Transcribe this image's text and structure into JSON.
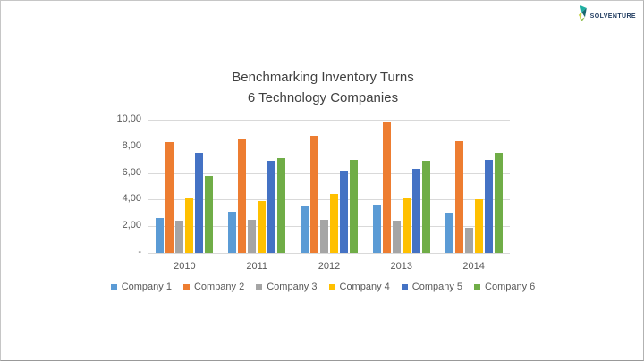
{
  "logo": {
    "text": "SOLVENTURE",
    "icon": "solventure-leaf-icon",
    "text_color": "#1e3a5f",
    "icon_colors": [
      "#1fb0a2",
      "#17666e",
      "#c9d44e",
      "#8fbf4d"
    ]
  },
  "chart_data": {
    "type": "bar",
    "title_line1": "Benchmarking Inventory Turns",
    "title_line2": "6 Technology Companies",
    "categories": [
      "2010",
      "2011",
      "2012",
      "2013",
      "2014"
    ],
    "series": [
      {
        "name": "Company 1",
        "color": "#5B9BD5",
        "values": [
          2.6,
          3.1,
          3.5,
          3.6,
          3.0
        ]
      },
      {
        "name": "Company 2",
        "color": "#ED7D31",
        "values": [
          8.3,
          8.5,
          8.8,
          9.9,
          8.4
        ]
      },
      {
        "name": "Company 3",
        "color": "#A5A5A5",
        "values": [
          2.4,
          2.5,
          2.5,
          2.4,
          1.9
        ]
      },
      {
        "name": "Company 4",
        "color": "#FFC000",
        "values": [
          4.1,
          3.9,
          4.4,
          4.1,
          4.0
        ]
      },
      {
        "name": "Company 5",
        "color": "#4472C4",
        "values": [
          7.5,
          6.9,
          6.2,
          6.3,
          7.0
        ]
      },
      {
        "name": "Company 6",
        "color": "#70AD47",
        "values": [
          5.8,
          7.1,
          7.0,
          6.9,
          7.5
        ]
      }
    ],
    "y_axis": {
      "min": 0,
      "max": 10,
      "step": 2,
      "tick_labels": [
        "10,00",
        "8,00",
        "6,00",
        "4,00",
        "2,00",
        "-"
      ]
    },
    "xlabel": "",
    "ylabel": "",
    "grid": true,
    "gridline_color": "#d9d9d9",
    "axis_text_color": "#595959",
    "title_color": "#404040",
    "legend_position": "bottom"
  }
}
